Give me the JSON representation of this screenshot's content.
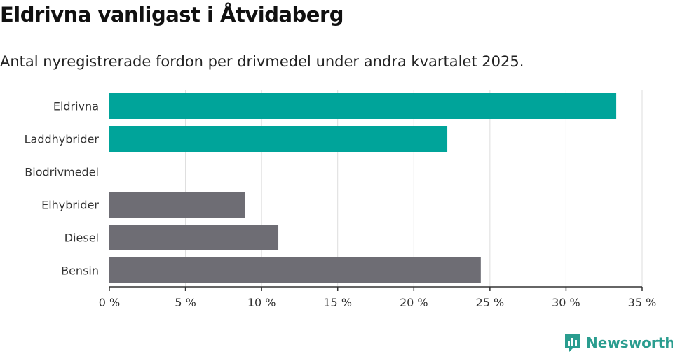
{
  "title": "Eldrivna vanligast i Åtvidaberg",
  "subtitle": "Antal nyregistrerade fordon per drivmedel under andra kvartalet 2025.",
  "logo_text": "Newsworthy",
  "colors": {
    "highlight": "#00a49a",
    "other": "#6e6d74",
    "grid": "#dddddd",
    "axis": "#333333",
    "brand": "#2a9d8f"
  },
  "chart_data": {
    "type": "bar",
    "orientation": "horizontal",
    "categories": [
      "Eldrivna",
      "Laddhybrider",
      "Biodrivmedel",
      "Elhybrider",
      "Diesel",
      "Bensin"
    ],
    "values": [
      33.3,
      22.2,
      0,
      8.9,
      11.1,
      24.4
    ],
    "highlight": [
      true,
      true,
      false,
      false,
      false,
      false
    ],
    "xlim": [
      0,
      35
    ],
    "xticks": [
      0,
      5,
      10,
      15,
      20,
      25,
      30,
      35
    ],
    "xtick_labels": [
      "0 %",
      "5 %",
      "10 %",
      "15 %",
      "20 %",
      "25 %",
      "30 %",
      "35 %"
    ],
    "grid": true
  }
}
